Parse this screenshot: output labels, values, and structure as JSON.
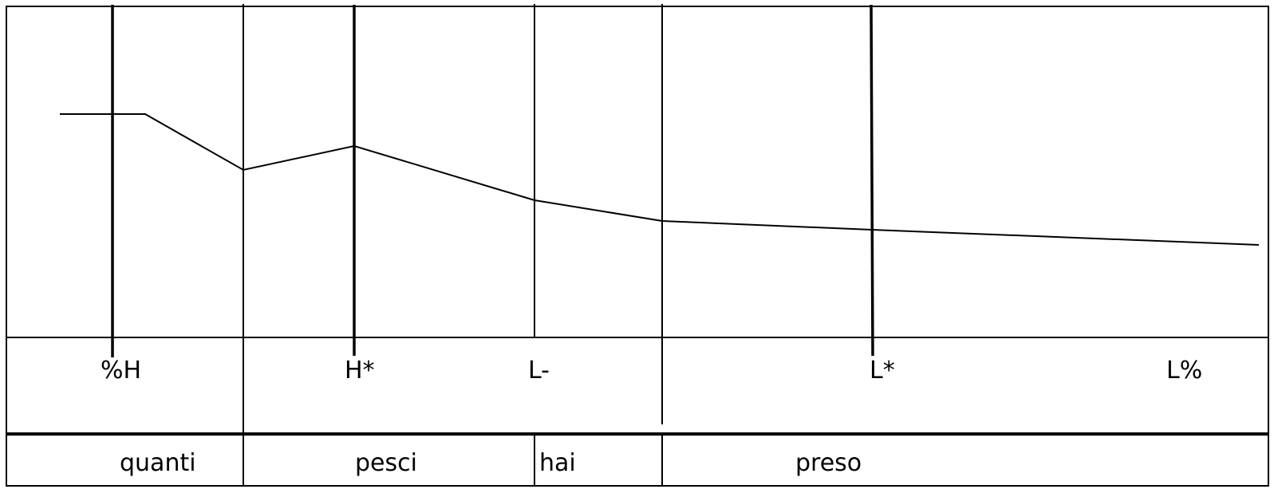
{
  "tones": [
    {
      "id": "boundary-high",
      "label": "%H"
    },
    {
      "id": "pitch-accent-high",
      "label": "H*"
    },
    {
      "id": "phrase-accent-low",
      "label": "L-"
    },
    {
      "id": "pitch-accent-low",
      "label": "L*"
    },
    {
      "id": "boundary-low",
      "label": "L%"
    }
  ],
  "words": [
    {
      "id": "quanti",
      "text": "quanti"
    },
    {
      "id": "pesci",
      "text": "pesci"
    },
    {
      "id": "hai",
      "text": "hai"
    },
    {
      "id": "preso",
      "text": "preso"
    }
  ],
  "colors": {
    "line": "#000000",
    "background": "#ffffff"
  }
}
